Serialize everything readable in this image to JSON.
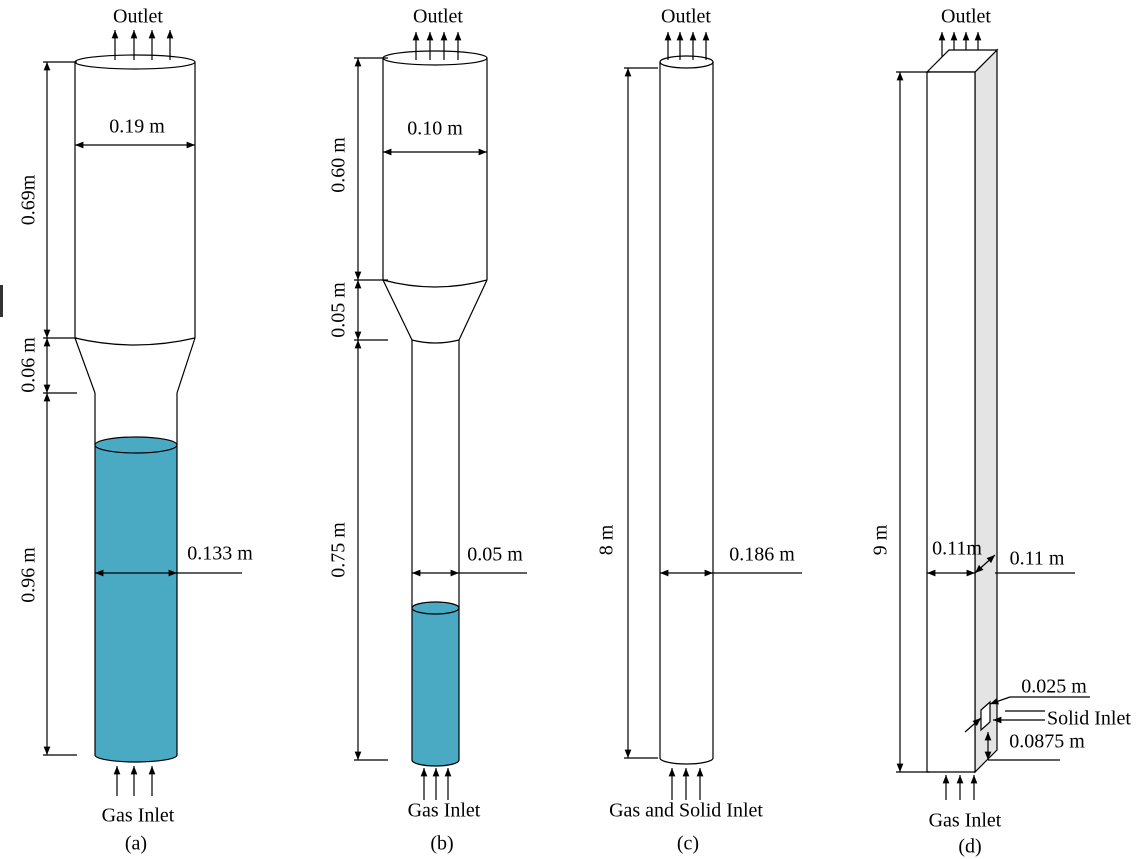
{
  "panels": [
    {
      "outlet": "Outlet",
      "dims": [
        "0.69m",
        "0.19 m",
        "0.06 m",
        "0.96 m",
        "0.133 m"
      ],
      "inlet": "Gas Inlet",
      "label": "(a)"
    },
    {
      "outlet": "Outlet",
      "dims": [
        "0.60 m",
        "0.10 m",
        "0.05 m",
        "0.75 m",
        "0.05 m"
      ],
      "inlet": "Gas Inlet",
      "label": "(b)"
    },
    {
      "outlet": "Outlet",
      "dims": [
        "8 m",
        "0.186 m"
      ],
      "inlet": "Gas and Solid Inlet",
      "label": "(c)"
    },
    {
      "outlet": "Outlet",
      "dims": [
        "9 m",
        "0.11m",
        "0.11 m",
        "0.025 m",
        "0.0875 m"
      ],
      "side_inlet": "Solid Inlet",
      "inlet": "Gas Inlet",
      "label": "(d)"
    }
  ]
}
